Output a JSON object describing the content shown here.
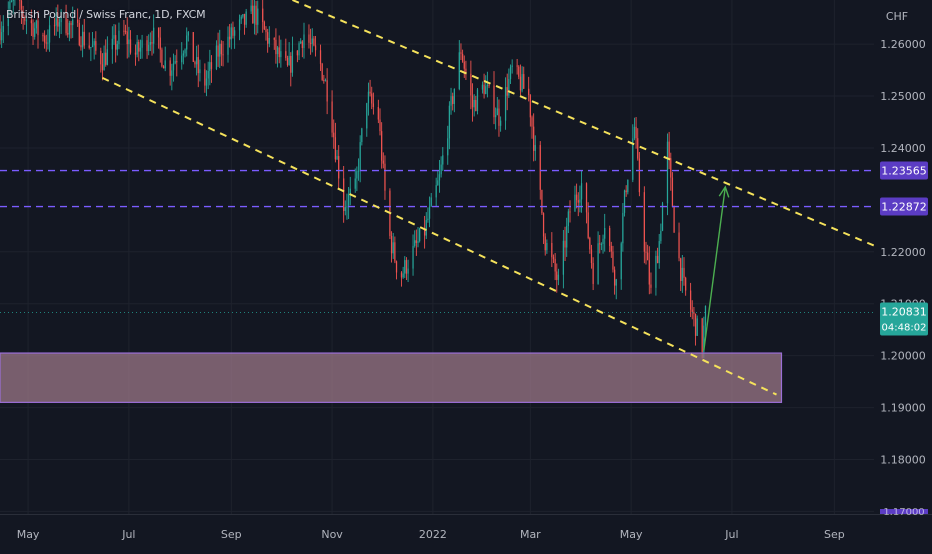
{
  "instrument": {
    "title": "British Pound / Swiss Franc, 1D, FXCM"
  },
  "chart_data": {
    "type": "candlestick",
    "currency_label": "CHF",
    "x_range": [
      "2021-04-14",
      "2022-09-25"
    ],
    "y_range": [
      1.1695,
      1.2685
    ],
    "x_ticks": [
      {
        "label": "May",
        "date": "2021-05-01"
      },
      {
        "label": "Jul",
        "date": "2021-07-01"
      },
      {
        "label": "Sep",
        "date": "2021-09-01"
      },
      {
        "label": "Nov",
        "date": "2021-11-01"
      },
      {
        "label": "2022",
        "date": "2022-01-01"
      },
      {
        "label": "Mar",
        "date": "2022-03-01"
      },
      {
        "label": "May",
        "date": "2022-05-01"
      },
      {
        "label": "Jul",
        "date": "2022-07-01"
      },
      {
        "label": "Sep",
        "date": "2022-09-01"
      }
    ],
    "y_ticks": [
      {
        "label": "1.26000",
        "value": 1.26
      },
      {
        "label": "1.25000",
        "value": 1.25
      },
      {
        "label": "1.24000",
        "value": 1.24
      },
      {
        "label": "1.22000",
        "value": 1.22
      },
      {
        "label": "1.21000",
        "value": 1.21
      },
      {
        "label": "1.20000",
        "value": 1.2
      },
      {
        "label": "1.19000",
        "value": 1.19
      },
      {
        "label": "1.18000",
        "value": 1.18
      },
      {
        "label": "1.17000",
        "value": 1.17
      }
    ],
    "price_path": [
      [
        "2021-04-14",
        1.263
      ],
      [
        "2021-04-22",
        1.268
      ],
      [
        "2021-05-05",
        1.263
      ],
      [
        "2021-05-12",
        1.261
      ],
      [
        "2021-05-20",
        1.265
      ],
      [
        "2021-06-01",
        1.262
      ],
      [
        "2021-06-15",
        1.257
      ],
      [
        "2021-06-28",
        1.262
      ],
      [
        "2021-07-05",
        1.258
      ],
      [
        "2021-07-15",
        1.262
      ],
      [
        "2021-07-25",
        1.255
      ],
      [
        "2021-08-05",
        1.261
      ],
      [
        "2021-08-15",
        1.252
      ],
      [
        "2021-08-25",
        1.259
      ],
      [
        "2021-09-05",
        1.263
      ],
      [
        "2021-09-15",
        1.266
      ],
      [
        "2021-09-25",
        1.26
      ],
      [
        "2021-10-05",
        1.255
      ],
      [
        "2021-10-15",
        1.262
      ],
      [
        "2021-10-25",
        1.256
      ],
      [
        "2021-10-30",
        1.25
      ],
      [
        "2021-11-03",
        1.24
      ],
      [
        "2021-11-08",
        1.229
      ],
      [
        "2021-11-15",
        1.232
      ],
      [
        "2021-11-22",
        1.25
      ],
      [
        "2021-11-29",
        1.246
      ],
      [
        "2021-12-05",
        1.224
      ],
      [
        "2021-12-12",
        1.215
      ],
      [
        "2021-12-20",
        1.22
      ],
      [
        "2021-12-27",
        1.224
      ],
      [
        "2022-01-05",
        1.234
      ],
      [
        "2022-01-12",
        1.248
      ],
      [
        "2022-01-18",
        1.259
      ],
      [
        "2022-01-25",
        1.248
      ],
      [
        "2022-02-01",
        1.252
      ],
      [
        "2022-02-10",
        1.246
      ],
      [
        "2022-02-18",
        1.255
      ],
      [
        "2022-02-28",
        1.25
      ],
      [
        "2022-03-05",
        1.236
      ],
      [
        "2022-03-10",
        1.222
      ],
      [
        "2022-03-18",
        1.214
      ],
      [
        "2022-03-25",
        1.228
      ],
      [
        "2022-04-01",
        1.233
      ],
      [
        "2022-04-08",
        1.216
      ],
      [
        "2022-04-15",
        1.226
      ],
      [
        "2022-04-22",
        1.214
      ],
      [
        "2022-04-28",
        1.233
      ],
      [
        "2022-05-03",
        1.244
      ],
      [
        "2022-05-08",
        1.224
      ],
      [
        "2022-05-13",
        1.212
      ],
      [
        "2022-05-18",
        1.222
      ],
      [
        "2022-05-23",
        1.24
      ],
      [
        "2022-05-28",
        1.222
      ],
      [
        "2022-06-02",
        1.213
      ],
      [
        "2022-06-08",
        1.207
      ],
      [
        "2022-06-13",
        1.202
      ],
      [
        "2022-06-15",
        1.208
      ]
    ],
    "support_zone": {
      "from_date": "2021-04-14",
      "to_date": "2022-07-31",
      "top": 1.2005,
      "bottom": 1.191
    },
    "horizontal_levels": [
      {
        "value": 1.23565,
        "label": "1.23565"
      },
      {
        "value": 1.22872,
        "label": "1.22872"
      }
    ],
    "trend_lines": [
      {
        "name": "channel-upper",
        "points": [
          [
            "2021-10-08",
            1.2685
          ],
          [
            "2022-09-25",
            1.2212
          ]
        ]
      },
      {
        "name": "channel-lower",
        "points": [
          [
            "2021-06-15",
            1.2535
          ],
          [
            "2022-07-28",
            1.1925
          ]
        ]
      }
    ],
    "projection_arrow": {
      "from": [
        "2022-06-14",
        1.201
      ],
      "to": [
        "2022-06-27",
        1.2325
      ]
    },
    "last_price": {
      "value": 1.20831,
      "label": "1.20831",
      "countdown": "04:48:02"
    },
    "partial_label": "1.21000",
    "bottom_tag_label": "1.17000",
    "colors": {
      "background": "#131722",
      "grid": "#1e222d",
      "up_candle": "#26a69a",
      "down_candle": "#ef5350",
      "trend_line": "#f5e25b",
      "level_line": "#7b5cff",
      "level_tag": "#5b3cc4",
      "zone_fill": "#a07a8a",
      "zone_border": "#9b6fd6",
      "arrow": "#4caf50",
      "last_price_tag": "#26a69a",
      "axis_text": "#b2b5be"
    }
  }
}
